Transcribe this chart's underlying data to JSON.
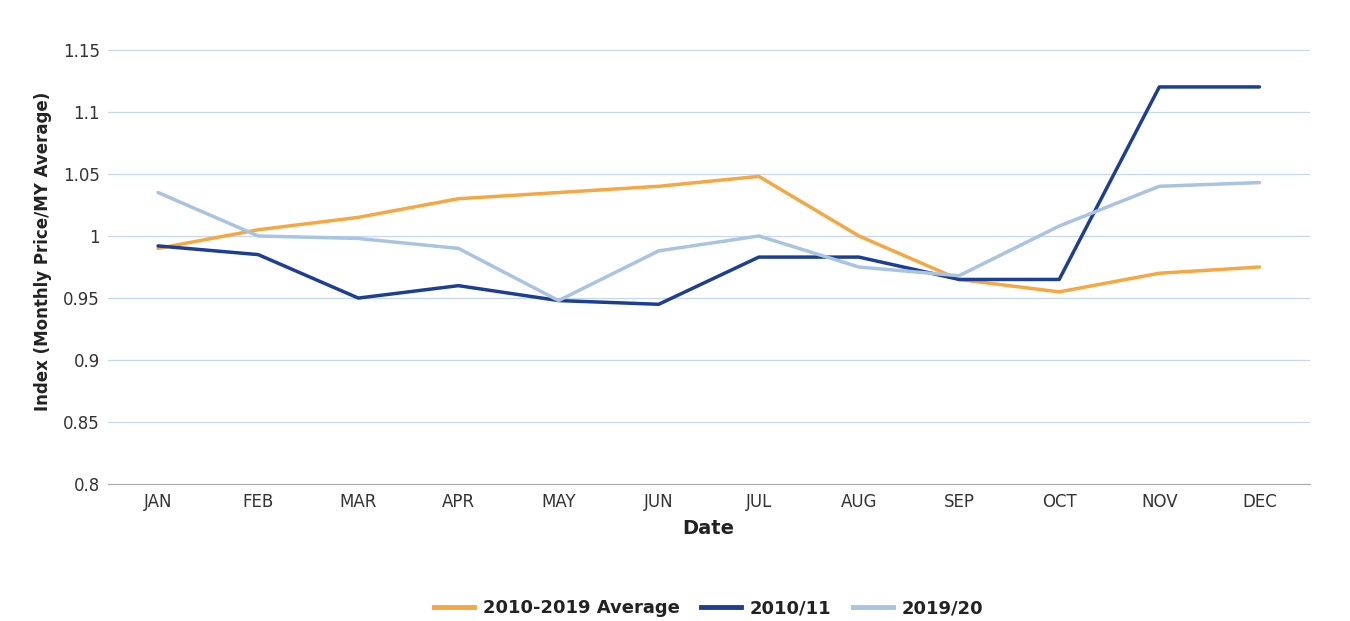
{
  "months": [
    "JAN",
    "FEB",
    "MAR",
    "APR",
    "MAY",
    "JUN",
    "JUL",
    "AUG",
    "SEP",
    "OCT",
    "NOV",
    "DEC"
  ],
  "avg_2010_2019": [
    0.99,
    1.005,
    1.015,
    1.03,
    1.035,
    1.04,
    1.048,
    1.0,
    0.965,
    0.955,
    0.97,
    0.975
  ],
  "year_2010_11": [
    0.992,
    0.985,
    0.95,
    0.96,
    0.948,
    0.945,
    0.983,
    0.983,
    0.965,
    0.965,
    1.12,
    1.12
  ],
  "year_2019_20": [
    1.035,
    1.0,
    0.998,
    0.99,
    0.948,
    0.988,
    1.0,
    0.975,
    0.968,
    1.008,
    1.04,
    1.043
  ],
  "color_avg": "#F5A742",
  "color_2010_11": "#1C3F94",
  "color_2019_20": "#A8C4E0",
  "ylabel": "Index (Monthly Price/MY Average)",
  "xlabel": "Date",
  "ylim_min": 0.8,
  "ylim_max": 1.175,
  "yticks": [
    0.8,
    0.85,
    0.9,
    0.95,
    1.0,
    1.05,
    1.1,
    1.15
  ],
  "ytick_labels": [
    "0.8",
    "0.85",
    "0.9",
    "0.95",
    "1",
    "1.05",
    "1.1",
    "1.15"
  ],
  "legend_labels": [
    "2010-2019 Average",
    "2010/11",
    "2019/20"
  ],
  "background_color": "#FFFFFF",
  "grid_color": "#C5D8EE",
  "line_width": 2.5
}
